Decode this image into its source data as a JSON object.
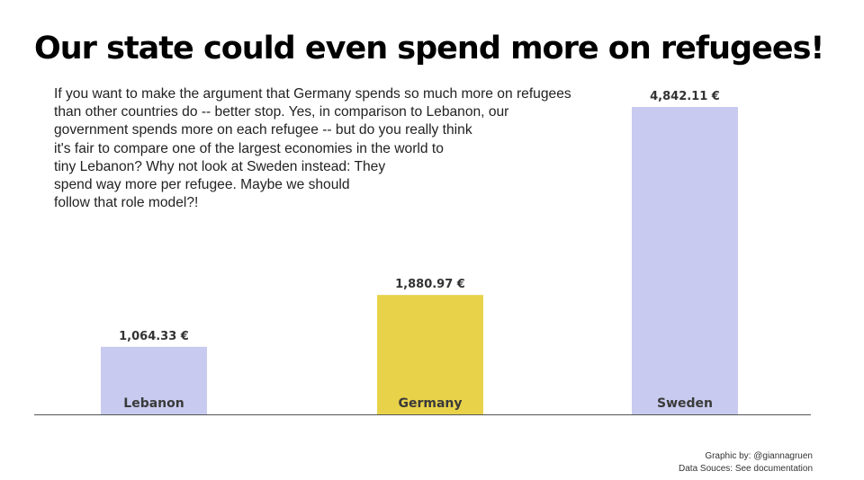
{
  "title": "Our state could even spend more on refugees!",
  "intro_lines": [
    "If you want to make the argument that Germany spends so much more on refugees",
    "than other countries do -- better stop. Yes, in comparison to Lebanon, our",
    "government spends more on each refugee -- but do you really think",
    "it's fair to compare one of the largest economies in the world to",
    "tiny Lebanon? Why not look at Sweden instead: They",
    "spend way more per refugee. Maybe we should",
    "follow that role model?!"
  ],
  "credits": {
    "graphic_by": "Graphic by: @giannagruen",
    "sources": "Data Souces: See documentation"
  },
  "chart_data": {
    "type": "bar",
    "title": "",
    "xlabel": "",
    "ylabel": "",
    "categories": [
      "Lebanon",
      "Germany",
      "Sweden"
    ],
    "values": [
      1064.33,
      1880.97,
      4842.11
    ],
    "value_labels": [
      "1,064.33 €",
      "1,880.97 €",
      "4,842.11 €"
    ],
    "colors": [
      "#c8cbef",
      "#e8d24a",
      "#c8cbef"
    ],
    "ylim": [
      0,
      4842.11
    ],
    "grid": false,
    "legend": "none"
  }
}
